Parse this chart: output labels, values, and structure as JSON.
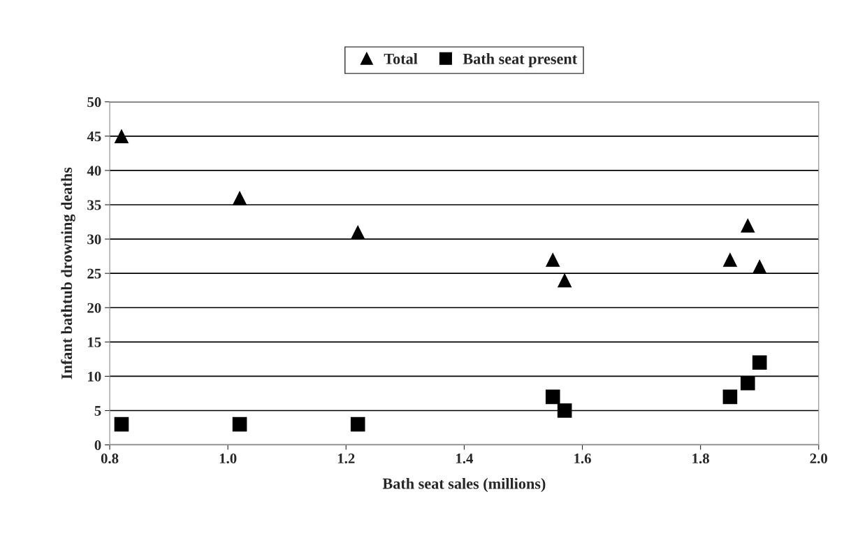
{
  "chart_data": {
    "type": "scatter",
    "xlabel": "Bath seat sales (millions)",
    "ylabel": "Infant bathtub drowning deaths",
    "x": [
      0.82,
      1.02,
      1.22,
      1.55,
      1.57,
      1.85,
      1.88,
      1.9
    ],
    "series": [
      {
        "name": "Total",
        "color": "#000000",
        "marker": "triangle",
        "values": [
          45,
          36,
          31,
          27,
          24,
          27,
          32,
          26
        ]
      },
      {
        "name": "Bath seat present",
        "color": "#000000",
        "marker": "square",
        "values": [
          3,
          3,
          3,
          7,
          5,
          7,
          9,
          12
        ]
      }
    ],
    "xlim": [
      0.8,
      2.0
    ],
    "xticks": [
      {
        "value": 0.8,
        "label": "0.8"
      },
      {
        "value": 1.0,
        "label": "1.0"
      },
      {
        "value": 1.2,
        "label": "1.2"
      },
      {
        "value": 1.4,
        "label": "1.4"
      },
      {
        "value": 1.6,
        "label": "1.6"
      },
      {
        "value": 1.8,
        "label": "1.8"
      },
      {
        "value": 2.0,
        "label": "2.0"
      }
    ],
    "ylim": [
      0,
      50
    ],
    "yticks": [
      0,
      5,
      10,
      15,
      20,
      25,
      30,
      35,
      40,
      45,
      50
    ],
    "grid": "y",
    "legend": "top"
  }
}
